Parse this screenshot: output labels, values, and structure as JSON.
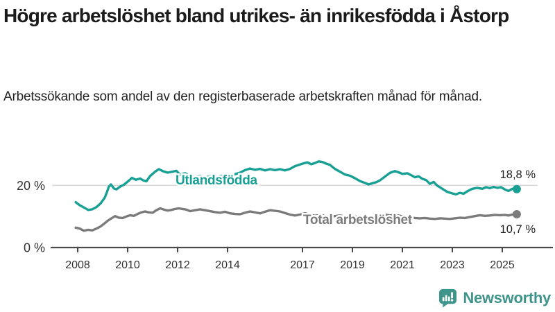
{
  "chart_data": {
    "type": "line",
    "title": "Högre arbetslöshet bland utrikes- än inrikesfödda i Åstorp",
    "subtitle": "Arbetssökande som andel av den registerbaserade arbetskraften månad för månad.",
    "legend_position": "inline-labels-on-lines",
    "grid": "single-horizontal-gridline-at-20",
    "x_axis": {
      "range": [
        2007.0,
        2026.0
      ],
      "tick_years": [
        2008,
        2010,
        2012,
        2014,
        2017,
        2019,
        2021,
        2023,
        2025
      ],
      "tick_labels": [
        "2008",
        "2010",
        "2012",
        "2014",
        "2017",
        "2019",
        "2021",
        "2023",
        "2025"
      ]
    },
    "y_axis": {
      "range": [
        0,
        29
      ],
      "unit": "%",
      "tick_values": [
        0,
        20
      ],
      "tick_labels": [
        "0 %",
        "20 %"
      ],
      "gridline_values": [
        20
      ]
    },
    "series": [
      {
        "id": "utlandsfodda",
        "name": "Utlandsfödda",
        "color": "#18a094",
        "end_label": "18,8 %",
        "end_value": 18.8,
        "points": [
          [
            2007.92,
            14.6
          ],
          [
            2008.08,
            13.6
          ],
          [
            2008.25,
            12.9
          ],
          [
            2008.42,
            12.1
          ],
          [
            2008.58,
            12.3
          ],
          [
            2008.75,
            13.0
          ],
          [
            2008.92,
            14.2
          ],
          [
            2009.08,
            16.0
          ],
          [
            2009.17,
            17.8
          ],
          [
            2009.25,
            19.6
          ],
          [
            2009.33,
            20.3
          ],
          [
            2009.45,
            19.0
          ],
          [
            2009.55,
            18.7
          ],
          [
            2009.7,
            19.6
          ],
          [
            2009.85,
            20.2
          ],
          [
            2010.0,
            21.2
          ],
          [
            2010.17,
            22.4
          ],
          [
            2010.33,
            21.8
          ],
          [
            2010.5,
            22.2
          ],
          [
            2010.63,
            21.6
          ],
          [
            2010.75,
            21.3
          ],
          [
            2010.9,
            23.0
          ],
          [
            2011.1,
            24.4
          ],
          [
            2011.25,
            25.2
          ],
          [
            2011.4,
            24.6
          ],
          [
            2011.6,
            24.1
          ],
          [
            2011.8,
            24.4
          ],
          [
            2011.95,
            24.7
          ],
          [
            2012.1,
            23.4
          ],
          [
            2012.3,
            23.9
          ],
          [
            2012.5,
            23.1
          ],
          [
            2012.7,
            22.6
          ],
          [
            2012.9,
            23.0
          ],
          [
            2013.1,
            22.5
          ],
          [
            2013.3,
            22.9
          ],
          [
            2013.5,
            22.4
          ],
          [
            2013.7,
            22.9
          ],
          [
            2013.9,
            23.3
          ],
          [
            2014.1,
            23.0
          ],
          [
            2014.3,
            23.6
          ],
          [
            2014.5,
            24.1
          ],
          [
            2014.7,
            24.9
          ],
          [
            2014.9,
            25.4
          ],
          [
            2015.1,
            25.0
          ],
          [
            2015.3,
            25.3
          ],
          [
            2015.5,
            24.8
          ],
          [
            2015.7,
            25.2
          ],
          [
            2015.9,
            24.9
          ],
          [
            2016.1,
            25.2
          ],
          [
            2016.3,
            24.8
          ],
          [
            2016.5,
            25.3
          ],
          [
            2016.7,
            26.2
          ],
          [
            2016.9,
            26.7
          ],
          [
            2017.05,
            27.1
          ],
          [
            2017.2,
            27.4
          ],
          [
            2017.35,
            26.8
          ],
          [
            2017.5,
            27.2
          ],
          [
            2017.65,
            27.7
          ],
          [
            2017.8,
            27.5
          ],
          [
            2017.95,
            27.0
          ],
          [
            2018.1,
            26.6
          ],
          [
            2018.3,
            25.3
          ],
          [
            2018.5,
            24.4
          ],
          [
            2018.7,
            23.5
          ],
          [
            2018.9,
            23.1
          ],
          [
            2019.1,
            22.3
          ],
          [
            2019.3,
            21.4
          ],
          [
            2019.5,
            20.8
          ],
          [
            2019.65,
            20.3
          ],
          [
            2019.8,
            20.7
          ],
          [
            2019.95,
            21.0
          ],
          [
            2020.1,
            21.6
          ],
          [
            2020.3,
            22.8
          ],
          [
            2020.5,
            24.0
          ],
          [
            2020.7,
            24.6
          ],
          [
            2020.85,
            24.2
          ],
          [
            2021.0,
            23.7
          ],
          [
            2021.2,
            23.9
          ],
          [
            2021.35,
            23.3
          ],
          [
            2021.5,
            22.6
          ],
          [
            2021.65,
            22.9
          ],
          [
            2021.8,
            22.1
          ],
          [
            2021.95,
            21.7
          ],
          [
            2022.1,
            20.5
          ],
          [
            2022.25,
            21.1
          ],
          [
            2022.4,
            19.9
          ],
          [
            2022.6,
            18.9
          ],
          [
            2022.8,
            17.9
          ],
          [
            2023.0,
            17.4
          ],
          [
            2023.15,
            17.1
          ],
          [
            2023.3,
            17.6
          ],
          [
            2023.45,
            17.3
          ],
          [
            2023.6,
            18.1
          ],
          [
            2023.8,
            18.9
          ],
          [
            2024.0,
            19.2
          ],
          [
            2024.2,
            18.9
          ],
          [
            2024.35,
            19.4
          ],
          [
            2024.5,
            19.1
          ],
          [
            2024.65,
            19.5
          ],
          [
            2024.8,
            19.2
          ],
          [
            2024.95,
            19.4
          ],
          [
            2025.1,
            18.7
          ],
          [
            2025.25,
            18.2
          ],
          [
            2025.4,
            18.9
          ],
          [
            2025.58,
            18.8
          ]
        ]
      },
      {
        "id": "total-arbetsloshet",
        "name": "Total arbetslöshet",
        "color": "#7b7b7b",
        "end_label": "10,7 %",
        "end_value": 10.7,
        "points": [
          [
            2007.92,
            6.4
          ],
          [
            2008.08,
            6.1
          ],
          [
            2008.25,
            5.4
          ],
          [
            2008.42,
            5.7
          ],
          [
            2008.58,
            5.5
          ],
          [
            2008.75,
            6.1
          ],
          [
            2008.92,
            6.8
          ],
          [
            2009.05,
            7.6
          ],
          [
            2009.2,
            8.6
          ],
          [
            2009.35,
            9.4
          ],
          [
            2009.5,
            10.1
          ],
          [
            2009.65,
            9.6
          ],
          [
            2009.8,
            9.5
          ],
          [
            2009.95,
            10.0
          ],
          [
            2010.1,
            10.4
          ],
          [
            2010.25,
            10.2
          ],
          [
            2010.4,
            10.8
          ],
          [
            2010.55,
            11.3
          ],
          [
            2010.7,
            11.6
          ],
          [
            2010.85,
            11.3
          ],
          [
            2011.0,
            11.2
          ],
          [
            2011.15,
            12.0
          ],
          [
            2011.3,
            12.6
          ],
          [
            2011.45,
            12.2
          ],
          [
            2011.6,
            11.9
          ],
          [
            2011.75,
            12.1
          ],
          [
            2011.9,
            12.4
          ],
          [
            2012.05,
            12.6
          ],
          [
            2012.2,
            12.4
          ],
          [
            2012.35,
            12.2
          ],
          [
            2012.5,
            11.7
          ],
          [
            2012.7,
            12.0
          ],
          [
            2012.9,
            12.3
          ],
          [
            2013.1,
            12.0
          ],
          [
            2013.3,
            11.7
          ],
          [
            2013.5,
            11.4
          ],
          [
            2013.7,
            11.2
          ],
          [
            2013.9,
            11.5
          ],
          [
            2014.1,
            11.0
          ],
          [
            2014.3,
            10.8
          ],
          [
            2014.5,
            10.7
          ],
          [
            2014.7,
            11.2
          ],
          [
            2014.9,
            11.6
          ],
          [
            2015.1,
            11.3
          ],
          [
            2015.3,
            11.0
          ],
          [
            2015.5,
            11.5
          ],
          [
            2015.7,
            12.0
          ],
          [
            2015.9,
            11.8
          ],
          [
            2016.1,
            11.6
          ],
          [
            2016.3,
            11.1
          ],
          [
            2016.5,
            10.6
          ],
          [
            2016.7,
            10.3
          ],
          [
            2016.9,
            10.6
          ],
          [
            2017.1,
            11.0
          ],
          [
            2017.3,
            10.6
          ],
          [
            2017.5,
            10.2
          ],
          [
            2017.7,
            10.5
          ],
          [
            2017.9,
            10.1
          ],
          [
            2018.1,
            9.8
          ],
          [
            2018.3,
            10.1
          ],
          [
            2018.5,
            10.3
          ],
          [
            2018.7,
            10.0
          ],
          [
            2018.9,
            9.7
          ],
          [
            2019.1,
            10.0
          ],
          [
            2019.3,
            9.6
          ],
          [
            2019.5,
            9.4
          ],
          [
            2019.7,
            9.7
          ],
          [
            2019.9,
            10.0
          ],
          [
            2020.1,
            10.4
          ],
          [
            2020.3,
            10.6
          ],
          [
            2020.5,
            10.3
          ],
          [
            2020.7,
            10.5
          ],
          [
            2020.9,
            10.2
          ],
          [
            2021.1,
            9.9
          ],
          [
            2021.3,
            9.7
          ],
          [
            2021.5,
            9.5
          ],
          [
            2021.7,
            9.4
          ],
          [
            2021.9,
            9.5
          ],
          [
            2022.1,
            9.3
          ],
          [
            2022.3,
            9.2
          ],
          [
            2022.5,
            9.4
          ],
          [
            2022.7,
            9.3
          ],
          [
            2022.9,
            9.2
          ],
          [
            2023.1,
            9.4
          ],
          [
            2023.3,
            9.6
          ],
          [
            2023.5,
            9.5
          ],
          [
            2023.7,
            9.8
          ],
          [
            2023.9,
            10.1
          ],
          [
            2024.1,
            10.4
          ],
          [
            2024.3,
            10.2
          ],
          [
            2024.5,
            10.3
          ],
          [
            2024.7,
            10.5
          ],
          [
            2024.9,
            10.4
          ],
          [
            2025.1,
            10.5
          ],
          [
            2025.25,
            10.3
          ],
          [
            2025.4,
            10.6
          ],
          [
            2025.58,
            10.7
          ]
        ]
      }
    ]
  },
  "branding": {
    "name": "Newsworthy",
    "color": "#3f948c",
    "icon": "bar-chart-speech-bubble"
  }
}
